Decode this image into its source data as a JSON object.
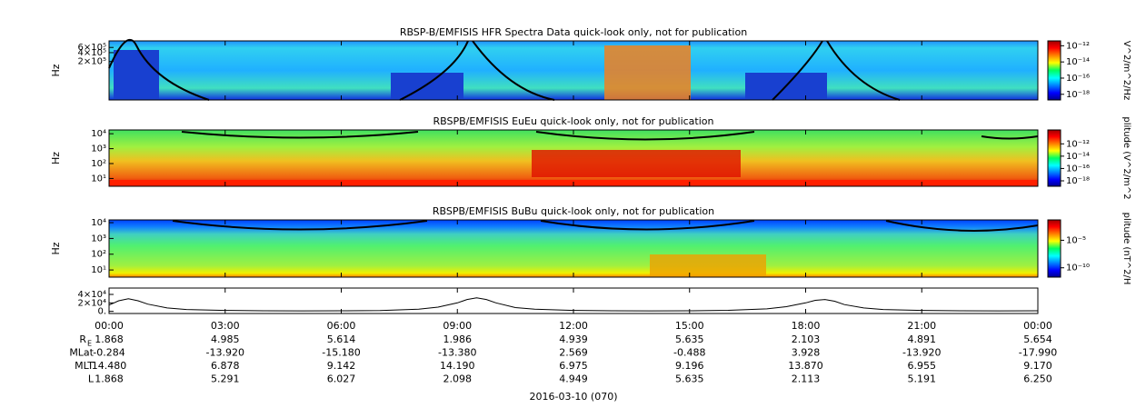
{
  "chart_data": [
    {
      "type": "spectrogram",
      "title": "RBSP-B/EMFISIS  HFR Spectra Data quick-look only, not for publication",
      "ylabel": "Hz",
      "log": true,
      "ylim": [
        10000,
        1000000
      ],
      "yticks": [
        {
          "value": 200000,
          "label": "2×10⁵"
        },
        {
          "value": 400000,
          "label": "4×10⁵"
        },
        {
          "value": 600000,
          "label": "6×10⁵"
        }
      ],
      "colorbar": {
        "label": "V^2/m^2/Hz",
        "clim": [
          2e-19,
          4e-12
        ],
        "ticks": [
          {
            "value": 1e-12,
            "label": "10⁻¹²"
          },
          {
            "value": 1e-14,
            "label": "10⁻¹⁴"
          },
          {
            "value": 1e-16,
            "label": "10⁻¹⁶"
          },
          {
            "value": 1e-18,
            "label": "10⁻¹⁸"
          }
        ]
      }
    },
    {
      "type": "spectrogram",
      "title": "RBSPB/EMFISIS  EuEu quick-look only, not for publication",
      "ylabel": "Hz",
      "log": true,
      "ylim": [
        3,
        18000
      ],
      "yticks": [
        {
          "value": 10,
          "label": "10¹"
        },
        {
          "value": 100,
          "label": "10²"
        },
        {
          "value": 1000,
          "label": "10³"
        },
        {
          "value": 10000,
          "label": "10⁴"
        }
      ],
      "colorbar": {
        "label": "plitude (V^2/m^2",
        "clim": [
          1.3e-19,
          1.8e-10
        ],
        "ticks": [
          {
            "value": 1e-12,
            "label": "10⁻¹²"
          },
          {
            "value": 1e-14,
            "label": "10⁻¹⁴"
          },
          {
            "value": 1e-16,
            "label": "10⁻¹⁶"
          },
          {
            "value": 1e-18,
            "label": "10⁻¹⁸"
          }
        ]
      }
    },
    {
      "type": "spectrogram",
      "title": "RBSPB/EMFISIS  BuBu quick-look only, not for publication",
      "ylabel": "Hz",
      "log": true,
      "ylim": [
        3.5,
        15000
      ],
      "yticks": [
        {
          "value": 10,
          "label": "10¹"
        },
        {
          "value": 100,
          "label": "10²"
        },
        {
          "value": 1000,
          "label": "10³"
        },
        {
          "value": 10000,
          "label": "10⁴"
        }
      ],
      "colorbar": {
        "label": "plitude (nT^2/H",
        "clim": [
          2e-12,
          0.05
        ],
        "ticks": [
          {
            "value": 1e-05,
            "label": "10⁻⁵"
          },
          {
            "value": 1e-10,
            "label": "10⁻¹⁰"
          }
        ]
      }
    },
    {
      "type": "line",
      "color": "#000000",
      "ylim": [
        -5000,
        55000
      ],
      "yticks": [
        {
          "value": 0,
          "label": "0."
        },
        {
          "value": 20000,
          "label": "2×10⁴"
        },
        {
          "value": 40000,
          "label": "4×10⁴"
        }
      ],
      "x": [
        0,
        15,
        30,
        45,
        60,
        90,
        120,
        180,
        240,
        300,
        360,
        420,
        480,
        510,
        540,
        555,
        570,
        585,
        600,
        630,
        660,
        720,
        780,
        840,
        900,
        960,
        1020,
        1050,
        1080,
        1095,
        1110,
        1125,
        1140,
        1170,
        1200,
        1260,
        1320,
        1380,
        1440
      ],
      "values": [
        15000,
        25000,
        30000,
        25000,
        17000,
        8000,
        4500,
        2200,
        1500,
        1300,
        1400,
        2000,
        5000,
        10000,
        20000,
        28000,
        32000,
        28000,
        20000,
        9000,
        5000,
        2300,
        1500,
        1300,
        1500,
        2500,
        6000,
        11000,
        20000,
        26000,
        28000,
        24000,
        16000,
        8000,
        4500,
        2200,
        1500,
        1300,
        1400
      ]
    }
  ],
  "x_axis": {
    "xlim": [
      0,
      1440
    ],
    "xticks": [
      {
        "value": 0,
        "label": "00:00"
      },
      {
        "value": 180,
        "label": "03:00"
      },
      {
        "value": 360,
        "label": "06:00"
      },
      {
        "value": 540,
        "label": "09:00"
      },
      {
        "value": 720,
        "label": "12:00"
      },
      {
        "value": 900,
        "label": "15:00"
      },
      {
        "value": 1080,
        "label": "18:00"
      },
      {
        "value": 1260,
        "label": "21:00"
      },
      {
        "value": 1440,
        "label": "00:00"
      }
    ],
    "date": "2016-03-10 (070)"
  },
  "ephemeris": [
    {
      "label": "R",
      "sub": "E",
      "values": [
        "1.868",
        "4.985",
        "5.614",
        "1.986",
        "4.939",
        "5.635",
        "2.103",
        "4.891",
        "5.654"
      ]
    },
    {
      "label": "MLat",
      "values": [
        "-0.284",
        "-13.920",
        "-15.180",
        "-13.380",
        "2.569",
        "-0.488",
        "3.928",
        "-13.920",
        "-17.990"
      ]
    },
    {
      "label": "MLT",
      "values": [
        "14.480",
        "6.878",
        "9.142",
        "14.190",
        "6.975",
        "9.196",
        "13.870",
        "6.955",
        "9.170"
      ]
    },
    {
      "label": "L",
      "values": [
        "1.868",
        "5.291",
        "6.027",
        "2.098",
        "4.949",
        "5.635",
        "2.113",
        "5.191",
        "6.250"
      ]
    }
  ]
}
